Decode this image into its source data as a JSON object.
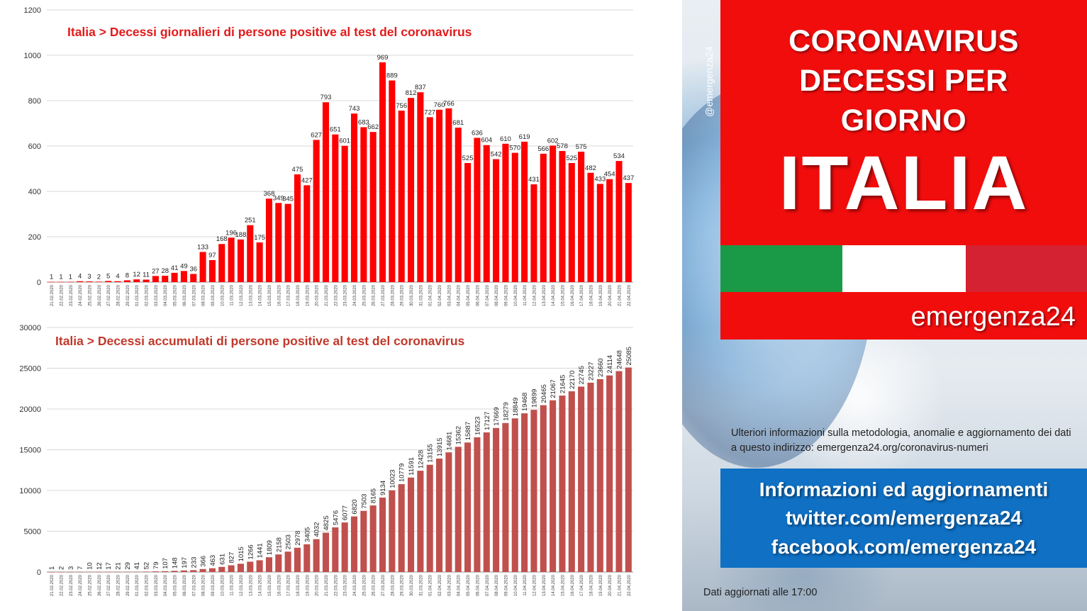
{
  "right_panel": {
    "handle": "@emergenza24",
    "title_lines": [
      "CORONAVIRUS",
      "DECESSI PER",
      "GIORNO"
    ],
    "title_big": "ITALIA",
    "brand": "emergenza24",
    "info": "Ulteriori informazioni sulla metodologia, anomalie e aggiornamento dei dati a questo indirizzo: emergenza24.org/coronavirus-numeri",
    "social": [
      "Informazioni ed aggiornamenti",
      "twitter.com/emergenza24",
      "facebook.com/emergenza24"
    ],
    "updated": "Dati aggiornati alle 17:00",
    "colors": {
      "red": "#f20d0d",
      "green": "#1a9a46",
      "flag_red": "#d42232",
      "blue": "#0f70c4"
    }
  },
  "chart_data": [
    {
      "type": "bar",
      "title": "Italia > Decessi giornalieri di persone positive al test del coronavirus",
      "xlabel": "",
      "ylabel": "",
      "ylim": [
        0,
        1200
      ],
      "yticks": [
        0,
        200,
        400,
        600,
        800,
        1000,
        1200
      ],
      "grid": true,
      "color": "#ff0000",
      "categories": [
        "21.02.2020",
        "22.02.2020",
        "23.02.2020",
        "24.02.2020",
        "25.02.2020",
        "26.02.2020",
        "27.02.2020",
        "28.02.2020",
        "29.02.2020",
        "01.03.2020",
        "02.03.2020",
        "03.03.2020",
        "04.03.2020",
        "05.03.2020",
        "06.03.2020",
        "07.03.2020",
        "08.03.2020",
        "09.03.2020",
        "10.03.2020",
        "11.03.2020",
        "12.03.2020",
        "13.03.2020",
        "14.03.2020",
        "15.03.2020",
        "16.03.2020",
        "17.03.2020",
        "18.03.2020",
        "19.03.2020",
        "20.03.2020",
        "21.03.2020",
        "22.03.2020",
        "23.03.2020",
        "24.03.2020",
        "25.03.2020",
        "26.03.2020",
        "27.03.2020",
        "28.03.2020",
        "29.03.2020",
        "30.03.2020",
        "31.03.2020",
        "01.04.2020",
        "02.04.2020",
        "03.04.2020",
        "04.04.2020",
        "05.04.2020",
        "06.04.2020",
        "07.04.2020",
        "08.04.2020",
        "09.04.2020",
        "10.04.2020",
        "11.04.2020",
        "12.04.2020",
        "13.04.2020",
        "14.04.2020",
        "15.04.2020",
        "16.04.2020",
        "17.04.2020",
        "18.04.2020",
        "19.04.2020",
        "20.04.2020",
        "21.04.2020",
        "22.04.2020"
      ],
      "values": [
        1,
        1,
        1,
        4,
        3,
        2,
        5,
        4,
        8,
        12,
        11,
        27,
        28,
        41,
        49,
        36,
        133,
        97,
        168,
        196,
        188,
        251,
        175,
        368,
        349,
        345,
        475,
        427,
        627,
        793,
        651,
        601,
        743,
        683,
        662,
        969,
        889,
        756,
        812,
        837,
        727,
        760,
        766,
        681,
        525,
        636,
        604,
        542,
        610,
        570,
        619,
        431,
        566,
        602,
        578,
        525,
        575,
        482,
        433,
        454,
        534,
        437
      ]
    },
    {
      "type": "bar",
      "title": "Italia > Decessi accumulati di persone positive al test del coronavirus",
      "xlabel": "",
      "ylabel": "",
      "ylim": [
        0,
        30000
      ],
      "yticks": [
        0,
        5000,
        10000,
        15000,
        20000,
        25000,
        30000
      ],
      "grid": true,
      "color": "#c0504d",
      "categories": [
        "21.02.2020",
        "22.02.2020",
        "23.02.2020",
        "24.02.2020",
        "25.02.2020",
        "26.02.2020",
        "27.02.2020",
        "28.02.2020",
        "29.02.2020",
        "01.03.2020",
        "02.03.2020",
        "03.03.2020",
        "04.03.2020",
        "05.03.2020",
        "06.03.2020",
        "07.03.2020",
        "08.03.2020",
        "09.03.2020",
        "10.03.2020",
        "11.03.2020",
        "12.03.2020",
        "13.03.2020",
        "14.03.2020",
        "15.03.2020",
        "16.03.2020",
        "17.03.2020",
        "18.03.2020",
        "19.03.2020",
        "20.03.2020",
        "21.03.2020",
        "22.03.2020",
        "23.03.2020",
        "24.03.2020",
        "25.03.2020",
        "26.03.2020",
        "27.03.2020",
        "28.03.2020",
        "29.03.2020",
        "30.03.2020",
        "31.03.2020",
        "01.04.2020",
        "02.04.2020",
        "03.04.2020",
        "04.04.2020",
        "05.04.2020",
        "06.04.2020",
        "07.04.2020",
        "08.04.2020",
        "09.04.2020",
        "10.04.2020",
        "11.04.2020",
        "12.04.2020",
        "13.04.2020",
        "14.04.2020",
        "15.04.2020",
        "16.04.2020",
        "17.04.2020",
        "18.04.2020",
        "19.04.2020",
        "20.04.2020",
        "21.04.2020",
        "22.04.2020"
      ],
      "values": [
        1,
        2,
        3,
        7,
        10,
        12,
        17,
        21,
        29,
        41,
        52,
        79,
        107,
        148,
        197,
        233,
        366,
        463,
        631,
        827,
        1015,
        1266,
        1441,
        1809,
        2158,
        2503,
        2978,
        3405,
        4032,
        4825,
        5476,
        6077,
        6820,
        7503,
        8165,
        9134,
        10023,
        10779,
        11591,
        12428,
        13155,
        13915,
        14681,
        15362,
        15887,
        16523,
        17127,
        17669,
        18279,
        18849,
        19468,
        19899,
        20465,
        21067,
        21645,
        22170,
        22745,
        23227,
        23660,
        24114,
        24648,
        25085
      ]
    }
  ]
}
